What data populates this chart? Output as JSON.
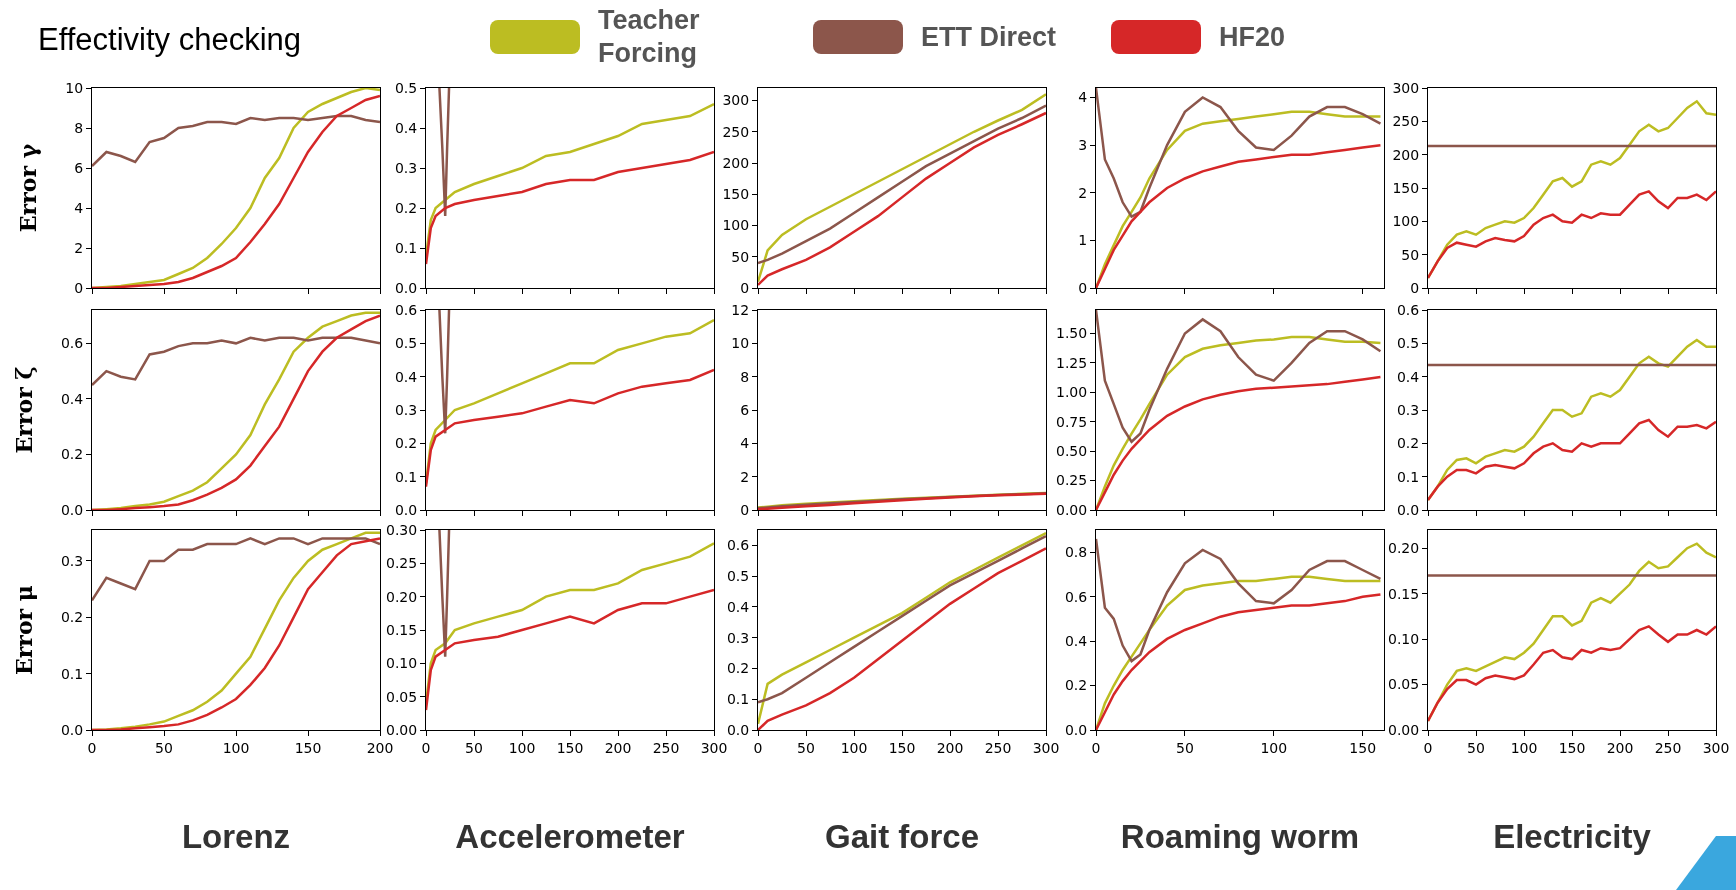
{
  "chart_data": [
    {
      "type": "line",
      "title": "Effectivity checking",
      "legend": "top",
      "ylabel": "Error γ",
      "tick_labels": "y",
      "xlim": [
        0,
        200
      ],
      "xticks": [
        0,
        50,
        100,
        150,
        200
      ],
      "ylim": [
        0,
        10
      ],
      "yticks": [
        0,
        2,
        4,
        6,
        8,
        10
      ],
      "x": [
        0,
        10,
        20,
        30,
        40,
        50,
        60,
        70,
        80,
        90,
        100,
        110,
        120,
        130,
        140,
        150,
        160,
        170,
        180,
        190,
        200
      ],
      "series": [
        {
          "name": "Teacher Forcing",
          "color": "#bcbd22",
          "values": [
            0,
            0.05,
            0.1,
            0.2,
            0.3,
            0.4,
            0.7,
            1.0,
            1.5,
            2.2,
            3.0,
            4.0,
            5.5,
            6.5,
            8.0,
            8.8,
            9.2,
            9.5,
            9.8,
            10,
            9.9
          ]
        },
        {
          "name": "ETT Direct",
          "color": "#8c564b",
          "values": [
            6.1,
            6.8,
            6.6,
            6.3,
            7.3,
            7.5,
            8.0,
            8.1,
            8.3,
            8.3,
            8.2,
            8.5,
            8.4,
            8.5,
            8.5,
            8.4,
            8.5,
            8.6,
            8.6,
            8.4,
            8.3
          ]
        },
        {
          "name": "HF20",
          "color": "#d62728",
          "values": [
            0,
            0,
            0.05,
            0.1,
            0.15,
            0.2,
            0.3,
            0.5,
            0.8,
            1.1,
            1.5,
            2.3,
            3.2,
            4.2,
            5.5,
            6.8,
            7.8,
            8.6,
            9.0,
            9.4,
            9.6
          ]
        }
      ]
    },
    {
      "type": "line",
      "tick_labels": "y",
      "xlim": [
        0,
        300
      ],
      "xticks": [
        0,
        50,
        100,
        150,
        200,
        250,
        300
      ],
      "ylim": [
        0,
        0.5
      ],
      "yticks": [
        {
          "value": 0,
          "label": "0.0"
        },
        0.1,
        0.2,
        0.3,
        0.4,
        0.5
      ],
      "x": [
        0,
        5,
        10,
        20,
        30,
        50,
        75,
        100,
        125,
        150,
        175,
        200,
        225,
        250,
        275,
        300
      ],
      "series": [
        {
          "name": "Teacher Forcing",
          "color": "#bcbd22",
          "values": [
            0.08,
            0.17,
            0.2,
            0.22,
            0.24,
            0.26,
            0.28,
            0.3,
            0.33,
            0.34,
            0.36,
            0.38,
            0.41,
            0.42,
            0.43,
            0.46
          ]
        },
        {
          "name": "ETT Direct",
          "color": "#8c564b",
          "x": [
            14,
            17,
            20,
            22,
            24
          ],
          "values": [
            0.5,
            0.35,
            0.18,
            0.35,
            0.5
          ]
        },
        {
          "name": "HF20",
          "color": "#d62728",
          "values": [
            0.06,
            0.15,
            0.18,
            0.2,
            0.21,
            0.22,
            0.23,
            0.24,
            0.26,
            0.27,
            0.27,
            0.29,
            0.3,
            0.31,
            0.32,
            0.34
          ]
        }
      ]
    },
    {
      "type": "line",
      "tick_labels": "y",
      "xlim": [
        0,
        300
      ],
      "xticks": [
        0,
        50,
        100,
        150,
        200,
        250,
        300
      ],
      "ylim": [
        0,
        320
      ],
      "yticks": [
        0,
        50,
        100,
        150,
        200,
        250,
        300
      ],
      "x": [
        0,
        10,
        25,
        50,
        75,
        100,
        125,
        150,
        175,
        200,
        225,
        250,
        275,
        300
      ],
      "series": [
        {
          "name": "Teacher Forcing",
          "color": "#bcbd22",
          "values": [
            10,
            60,
            85,
            110,
            130,
            150,
            170,
            190,
            210,
            230,
            250,
            268,
            285,
            310
          ]
        },
        {
          "name": "ETT Direct",
          "color": "#8c564b",
          "values": [
            40,
            45,
            55,
            75,
            95,
            120,
            145,
            170,
            195,
            215,
            235,
            255,
            272,
            292
          ]
        },
        {
          "name": "HF20",
          "color": "#d62728",
          "values": [
            5,
            20,
            30,
            45,
            65,
            90,
            115,
            145,
            175,
            200,
            225,
            245,
            262,
            280
          ]
        }
      ]
    },
    {
      "type": "line",
      "tick_labels": "y",
      "xlim": [
        0,
        162
      ],
      "xticks": [
        0,
        50,
        100,
        150
      ],
      "ylim": [
        0,
        4.2
      ],
      "yticks": [
        0,
        1,
        2,
        3,
        4
      ],
      "x": [
        0,
        5,
        10,
        15,
        20,
        25,
        30,
        40,
        50,
        60,
        70,
        80,
        90,
        100,
        110,
        120,
        130,
        140,
        150,
        160
      ],
      "series": [
        {
          "name": "Teacher Forcing",
          "color": "#bcbd22",
          "values": [
            0,
            0.5,
            0.9,
            1.3,
            1.6,
            1.9,
            2.3,
            2.9,
            3.3,
            3.45,
            3.5,
            3.55,
            3.6,
            3.65,
            3.7,
            3.7,
            3.65,
            3.6,
            3.6,
            3.6
          ]
        },
        {
          "name": "ETT Direct",
          "color": "#8c564b",
          "values": [
            4.2,
            2.7,
            2.3,
            1.8,
            1.5,
            1.6,
            2.1,
            3.0,
            3.7,
            4.0,
            3.8,
            3.3,
            2.95,
            2.9,
            3.2,
            3.6,
            3.8,
            3.8,
            3.65,
            3.45
          ]
        },
        {
          "name": "HF20",
          "color": "#d62728",
          "values": [
            0,
            0.4,
            0.8,
            1.1,
            1.4,
            1.6,
            1.8,
            2.1,
            2.3,
            2.45,
            2.55,
            2.65,
            2.7,
            2.75,
            2.8,
            2.8,
            2.85,
            2.9,
            2.95,
            3.0
          ]
        }
      ]
    },
    {
      "type": "line",
      "tick_labels": "y",
      "xlim": [
        0,
        300
      ],
      "xticks": [
        0,
        50,
        100,
        150,
        200,
        250,
        300
      ],
      "ylim": [
        0,
        300
      ],
      "yticks": [
        0,
        50,
        100,
        150,
        200,
        250,
        300
      ],
      "x": [
        0,
        10,
        20,
        30,
        40,
        50,
        60,
        70,
        80,
        90,
        100,
        110,
        120,
        130,
        140,
        150,
        160,
        170,
        180,
        190,
        200,
        210,
        220,
        230,
        240,
        250,
        260,
        270,
        280,
        290,
        300
      ],
      "series": [
        {
          "name": "Teacher Forcing",
          "color": "#bcbd22",
          "values": [
            15,
            40,
            65,
            80,
            85,
            80,
            90,
            95,
            100,
            98,
            105,
            120,
            140,
            160,
            165,
            152,
            160,
            185,
            190,
            185,
            195,
            215,
            235,
            245,
            235,
            240,
            255,
            270,
            280,
            262,
            260
          ]
        },
        {
          "name": "ETT Direct",
          "color": "#8c564b",
          "x": [
            0,
            300
          ],
          "values": [
            213,
            213
          ]
        },
        {
          "name": "HF20",
          "color": "#d62728",
          "values": [
            15,
            40,
            60,
            68,
            65,
            62,
            70,
            75,
            72,
            70,
            78,
            95,
            105,
            110,
            100,
            98,
            110,
            105,
            112,
            110,
            110,
            125,
            140,
            145,
            130,
            120,
            135,
            135,
            140,
            132,
            145
          ]
        }
      ]
    },
    {
      "type": "line",
      "ylabel": "Error ζ",
      "tick_labels": "y",
      "xlim": [
        0,
        200
      ],
      "xticks": [
        0,
        50,
        100,
        150,
        200
      ],
      "ylim": [
        0,
        0.72
      ],
      "yticks": [
        {
          "value": 0,
          "label": "0.0"
        },
        0.2,
        0.4,
        0.6
      ],
      "x": [
        0,
        10,
        20,
        30,
        40,
        50,
        60,
        70,
        80,
        90,
        100,
        110,
        120,
        130,
        140,
        150,
        160,
        170,
        180,
        190,
        200
      ],
      "series": [
        {
          "name": "Teacher Forcing",
          "color": "#bcbd22",
          "values": [
            0,
            0.003,
            0.007,
            0.014,
            0.02,
            0.03,
            0.05,
            0.07,
            0.1,
            0.15,
            0.2,
            0.27,
            0.38,
            0.47,
            0.57,
            0.62,
            0.66,
            0.68,
            0.7,
            0.71,
            0.71
          ]
        },
        {
          "name": "ETT Direct",
          "color": "#8c564b",
          "values": [
            0.45,
            0.5,
            0.48,
            0.47,
            0.56,
            0.57,
            0.59,
            0.6,
            0.6,
            0.61,
            0.6,
            0.62,
            0.61,
            0.62,
            0.62,
            0.61,
            0.62,
            0.62,
            0.62,
            0.61,
            0.6
          ]
        },
        {
          "name": "HF20",
          "color": "#d62728",
          "values": [
            0,
            0,
            0.003,
            0.007,
            0.01,
            0.014,
            0.02,
            0.035,
            0.055,
            0.08,
            0.11,
            0.16,
            0.23,
            0.3,
            0.4,
            0.5,
            0.57,
            0.62,
            0.65,
            0.68,
            0.7
          ]
        }
      ]
    },
    {
      "type": "line",
      "tick_labels": "y",
      "xlim": [
        0,
        300
      ],
      "xticks": [
        0,
        50,
        100,
        150,
        200,
        250,
        300
      ],
      "ylim": [
        0,
        0.6
      ],
      "yticks": [
        {
          "value": 0,
          "label": "0.0"
        },
        0.1,
        0.2,
        0.3,
        0.4,
        0.5,
        0.6
      ],
      "x": [
        0,
        5,
        10,
        20,
        30,
        50,
        75,
        100,
        125,
        150,
        175,
        200,
        225,
        250,
        275,
        300
      ],
      "series": [
        {
          "name": "Teacher Forcing",
          "color": "#bcbd22",
          "values": [
            0.08,
            0.2,
            0.24,
            0.27,
            0.3,
            0.32,
            0.35,
            0.38,
            0.41,
            0.44,
            0.44,
            0.48,
            0.5,
            0.52,
            0.53,
            0.57
          ]
        },
        {
          "name": "ETT Direct",
          "color": "#8c564b",
          "x": [
            14,
            17,
            20,
            22,
            24
          ],
          "values": [
            0.6,
            0.4,
            0.23,
            0.4,
            0.6
          ]
        },
        {
          "name": "HF20",
          "color": "#d62728",
          "values": [
            0.07,
            0.18,
            0.22,
            0.24,
            0.26,
            0.27,
            0.28,
            0.29,
            0.31,
            0.33,
            0.32,
            0.35,
            0.37,
            0.38,
            0.39,
            0.42
          ]
        }
      ]
    },
    {
      "type": "line",
      "tick_labels": "y",
      "xlim": [
        0,
        300
      ],
      "xticks": [
        0,
        50,
        100,
        150,
        200,
        250,
        300
      ],
      "ylim": [
        0,
        12
      ],
      "yticks": [
        0,
        2,
        4,
        6,
        8,
        10,
        12
      ],
      "x": [
        0,
        10,
        25,
        50,
        75,
        100,
        125,
        150,
        175,
        200,
        225,
        250,
        275,
        300
      ],
      "series": [
        {
          "name": "Teacher Forcing",
          "color": "#bcbd22",
          "values": [
            0.15,
            0.2,
            0.28,
            0.38,
            0.45,
            0.52,
            0.6,
            0.67,
            0.74,
            0.8,
            0.86,
            0.92,
            0.97,
            1.02
          ]
        },
        {
          "name": "ETT Direct",
          "color": "#8c564b",
          "values": [
            0.1,
            0.15,
            0.22,
            0.32,
            0.4,
            0.48,
            0.56,
            0.64,
            0.71,
            0.78,
            0.84,
            0.9,
            0.95,
            1.0
          ]
        },
        {
          "name": "HF20",
          "color": "#d62728",
          "values": [
            0.05,
            0.08,
            0.14,
            0.22,
            0.3,
            0.4,
            0.5,
            0.59,
            0.68,
            0.75,
            0.82,
            0.88,
            0.93,
            0.98
          ]
        }
      ]
    },
    {
      "type": "line",
      "tick_labels": "y",
      "xlim": [
        0,
        162
      ],
      "xticks": [
        0,
        50,
        100,
        150
      ],
      "ylim": [
        0,
        1.7
      ],
      "yticks": [
        {
          "value": 0,
          "label": "0.00"
        },
        0.25,
        {
          "value": 0.5,
          "label": "0.50"
        },
        0.75,
        {
          "value": 1,
          "label": "1.00"
        },
        1.25,
        {
          "value": 1.5,
          "label": "1.50"
        }
      ],
      "x": [
        0,
        5,
        10,
        15,
        20,
        25,
        30,
        40,
        50,
        60,
        70,
        80,
        90,
        100,
        110,
        120,
        130,
        140,
        150,
        160
      ],
      "series": [
        {
          "name": "Teacher Forcing",
          "color": "#bcbd22",
          "values": [
            0,
            0.2,
            0.38,
            0.52,
            0.65,
            0.77,
            0.9,
            1.15,
            1.3,
            1.37,
            1.4,
            1.42,
            1.44,
            1.45,
            1.47,
            1.47,
            1.45,
            1.43,
            1.43,
            1.42
          ]
        },
        {
          "name": "ETT Direct",
          "color": "#8c564b",
          "values": [
            1.7,
            1.1,
            0.9,
            0.7,
            0.58,
            0.65,
            0.85,
            1.2,
            1.5,
            1.62,
            1.52,
            1.3,
            1.15,
            1.1,
            1.25,
            1.42,
            1.52,
            1.52,
            1.45,
            1.35
          ]
        },
        {
          "name": "HF20",
          "color": "#d62728",
          "values": [
            0,
            0.15,
            0.3,
            0.42,
            0.52,
            0.6,
            0.68,
            0.8,
            0.88,
            0.94,
            0.98,
            1.01,
            1.03,
            1.04,
            1.05,
            1.06,
            1.07,
            1.09,
            1.11,
            1.13
          ]
        }
      ]
    },
    {
      "type": "line",
      "tick_labels": "y",
      "xlim": [
        0,
        300
      ],
      "xticks": [
        0,
        50,
        100,
        150,
        200,
        250,
        300
      ],
      "ylim": [
        0,
        0.6
      ],
      "yticks": [
        {
          "value": 0,
          "label": "0.0"
        },
        0.1,
        0.2,
        0.3,
        0.4,
        0.5,
        0.6
      ],
      "x": [
        0,
        10,
        20,
        30,
        40,
        50,
        60,
        70,
        80,
        90,
        100,
        110,
        120,
        130,
        140,
        150,
        160,
        170,
        180,
        190,
        200,
        210,
        220,
        230,
        240,
        250,
        260,
        270,
        280,
        290,
        300
      ],
      "series": [
        {
          "name": "Teacher Forcing",
          "color": "#bcbd22",
          "values": [
            0.03,
            0.07,
            0.12,
            0.15,
            0.155,
            0.14,
            0.16,
            0.17,
            0.18,
            0.175,
            0.19,
            0.22,
            0.26,
            0.3,
            0.3,
            0.28,
            0.29,
            0.34,
            0.35,
            0.34,
            0.36,
            0.4,
            0.44,
            0.46,
            0.44,
            0.43,
            0.46,
            0.49,
            0.51,
            0.49,
            0.49
          ]
        },
        {
          "name": "ETT Direct",
          "color": "#8c564b",
          "x": [
            0,
            300
          ],
          "values": [
            0.435,
            0.435
          ]
        },
        {
          "name": "HF20",
          "color": "#d62728",
          "values": [
            0.03,
            0.07,
            0.1,
            0.12,
            0.12,
            0.11,
            0.13,
            0.135,
            0.13,
            0.125,
            0.14,
            0.17,
            0.19,
            0.2,
            0.18,
            0.175,
            0.2,
            0.19,
            0.2,
            0.2,
            0.2,
            0.23,
            0.26,
            0.27,
            0.24,
            0.22,
            0.25,
            0.25,
            0.255,
            0.245,
            0.265
          ]
        }
      ]
    },
    {
      "type": "line",
      "ylabel": "Error μ",
      "xlabel": "Lorenz",
      "xlim": [
        0,
        200
      ],
      "xticks": [
        0,
        50,
        100,
        150,
        200
      ],
      "ylim": [
        0,
        0.355
      ],
      "yticks": [
        {
          "value": 0,
          "label": "0.0"
        },
        0.1,
        0.2,
        0.3
      ],
      "x": [
        0,
        10,
        20,
        30,
        40,
        50,
        60,
        70,
        80,
        90,
        100,
        110,
        120,
        130,
        140,
        150,
        160,
        170,
        180,
        190,
        200
      ],
      "series": [
        {
          "name": "Teacher Forcing",
          "color": "#bcbd22",
          "values": [
            0,
            0.001,
            0.003,
            0.006,
            0.01,
            0.015,
            0.025,
            0.035,
            0.05,
            0.07,
            0.1,
            0.13,
            0.18,
            0.23,
            0.27,
            0.3,
            0.32,
            0.33,
            0.34,
            0.35,
            0.35
          ]
        },
        {
          "name": "ETT Direct",
          "color": "#8c564b",
          "values": [
            0.23,
            0.27,
            0.26,
            0.25,
            0.3,
            0.3,
            0.32,
            0.32,
            0.33,
            0.33,
            0.33,
            0.34,
            0.33,
            0.34,
            0.34,
            0.33,
            0.34,
            0.34,
            0.34,
            0.34,
            0.33
          ]
        },
        {
          "name": "HF20",
          "color": "#d62728",
          "values": [
            0,
            0,
            0.001,
            0.003,
            0.005,
            0.007,
            0.01,
            0.017,
            0.027,
            0.04,
            0.055,
            0.08,
            0.11,
            0.15,
            0.2,
            0.25,
            0.28,
            0.31,
            0.33,
            0.335,
            0.34
          ]
        }
      ]
    },
    {
      "type": "line",
      "xlabel": "Accelerometer",
      "xlim": [
        0,
        300
      ],
      "xticks": [
        0,
        50,
        100,
        150,
        200,
        250,
        300
      ],
      "ylim": [
        0,
        0.3
      ],
      "yticks": [
        {
          "value": 0,
          "label": "0.00"
        },
        0.05,
        {
          "value": 0.1,
          "label": "0.10"
        },
        0.15,
        {
          "value": 0.2,
          "label": "0.20"
        },
        0.25,
        {
          "value": 0.3,
          "label": "0.30"
        }
      ],
      "x": [
        0,
        5,
        10,
        20,
        30,
        50,
        75,
        100,
        125,
        150,
        175,
        200,
        225,
        250,
        275,
        300
      ],
      "series": [
        {
          "name": "Teacher Forcing",
          "color": "#bcbd22",
          "values": [
            0.04,
            0.1,
            0.12,
            0.13,
            0.15,
            0.16,
            0.17,
            0.18,
            0.2,
            0.21,
            0.21,
            0.22,
            0.24,
            0.25,
            0.26,
            0.28
          ]
        },
        {
          "name": "ETT Direct",
          "color": "#8c564b",
          "x": [
            14,
            17,
            20,
            22,
            24
          ],
          "values": [
            0.3,
            0.2,
            0.11,
            0.2,
            0.3
          ]
        },
        {
          "name": "HF20",
          "color": "#d62728",
          "values": [
            0.03,
            0.09,
            0.11,
            0.12,
            0.13,
            0.135,
            0.14,
            0.15,
            0.16,
            0.17,
            0.16,
            0.18,
            0.19,
            0.19,
            0.2,
            0.21
          ]
        }
      ]
    },
    {
      "type": "line",
      "xlabel": "Gait force",
      "xlim": [
        0,
        300
      ],
      "xticks": [
        0,
        50,
        100,
        150,
        200,
        250,
        300
      ],
      "ylim": [
        0,
        0.65
      ],
      "yticks": [
        {
          "value": 0,
          "label": "0.0"
        },
        0.1,
        0.2,
        0.3,
        0.4,
        0.5,
        0.6
      ],
      "x": [
        0,
        10,
        25,
        50,
        75,
        100,
        125,
        150,
        175,
        200,
        225,
        250,
        275,
        300
      ],
      "series": [
        {
          "name": "Teacher Forcing",
          "color": "#bcbd22",
          "values": [
            0.02,
            0.15,
            0.18,
            0.22,
            0.26,
            0.3,
            0.34,
            0.38,
            0.43,
            0.48,
            0.52,
            0.56,
            0.6,
            0.64
          ]
        },
        {
          "name": "ETT Direct",
          "color": "#8c564b",
          "values": [
            0.09,
            0.1,
            0.12,
            0.17,
            0.22,
            0.27,
            0.32,
            0.37,
            0.42,
            0.47,
            0.51,
            0.55,
            0.59,
            0.63
          ]
        },
        {
          "name": "HF20",
          "color": "#d62728",
          "values": [
            0,
            0.03,
            0.05,
            0.08,
            0.12,
            0.17,
            0.23,
            0.29,
            0.35,
            0.41,
            0.46,
            0.51,
            0.55,
            0.59
          ]
        }
      ]
    },
    {
      "type": "line",
      "xlabel": "Roaming worm",
      "xlim": [
        0,
        162
      ],
      "xticks": [
        0,
        50,
        100,
        150
      ],
      "ylim": [
        0,
        0.9
      ],
      "yticks": [
        {
          "value": 0,
          "label": "0.0"
        },
        0.2,
        0.4,
        0.6,
        0.8
      ],
      "x": [
        0,
        5,
        10,
        15,
        20,
        25,
        30,
        40,
        50,
        60,
        70,
        80,
        90,
        100,
        110,
        120,
        130,
        140,
        150,
        160
      ],
      "series": [
        {
          "name": "Teacher Forcing",
          "color": "#bcbd22",
          "values": [
            0,
            0.12,
            0.2,
            0.27,
            0.33,
            0.39,
            0.45,
            0.56,
            0.63,
            0.65,
            0.66,
            0.67,
            0.67,
            0.68,
            0.69,
            0.69,
            0.68,
            0.67,
            0.67,
            0.67
          ]
        },
        {
          "name": "ETT Direct",
          "color": "#8c564b",
          "values": [
            0.86,
            0.55,
            0.5,
            0.38,
            0.31,
            0.34,
            0.45,
            0.62,
            0.75,
            0.81,
            0.77,
            0.66,
            0.58,
            0.57,
            0.63,
            0.72,
            0.76,
            0.76,
            0.72,
            0.68
          ]
        },
        {
          "name": "HF20",
          "color": "#d62728",
          "values": [
            0,
            0.08,
            0.16,
            0.22,
            0.27,
            0.31,
            0.35,
            0.41,
            0.45,
            0.48,
            0.51,
            0.53,
            0.54,
            0.55,
            0.56,
            0.56,
            0.57,
            0.58,
            0.6,
            0.61
          ]
        }
      ]
    },
    {
      "type": "line",
      "xlabel": "Electricity",
      "xlim": [
        0,
        300
      ],
      "xticks": [
        0,
        50,
        100,
        150,
        200,
        250,
        300
      ],
      "ylim": [
        0,
        0.22
      ],
      "yticks": [
        {
          "value": 0,
          "label": "0.00"
        },
        0.05,
        {
          "value": 0.1,
          "label": "0.10"
        },
        0.15,
        {
          "value": 0.2,
          "label": "0.20"
        }
      ],
      "x": [
        0,
        10,
        20,
        30,
        40,
        50,
        60,
        70,
        80,
        90,
        100,
        110,
        120,
        130,
        140,
        150,
        160,
        170,
        180,
        190,
        200,
        210,
        220,
        230,
        240,
        250,
        260,
        270,
        280,
        290,
        300
      ],
      "series": [
        {
          "name": "Teacher Forcing",
          "color": "#bcbd22",
          "values": [
            0.01,
            0.03,
            0.05,
            0.065,
            0.068,
            0.065,
            0.07,
            0.075,
            0.08,
            0.078,
            0.085,
            0.095,
            0.11,
            0.125,
            0.125,
            0.115,
            0.12,
            0.14,
            0.145,
            0.14,
            0.15,
            0.16,
            0.175,
            0.185,
            0.178,
            0.18,
            0.19,
            0.2,
            0.205,
            0.195,
            0.19
          ]
        },
        {
          "name": "ETT Direct",
          "color": "#8c564b",
          "x": [
            0,
            300
          ],
          "values": [
            0.17,
            0.17
          ]
        },
        {
          "name": "HF20",
          "color": "#d62728",
          "values": [
            0.01,
            0.03,
            0.045,
            0.055,
            0.055,
            0.05,
            0.057,
            0.06,
            0.058,
            0.056,
            0.06,
            0.072,
            0.085,
            0.088,
            0.08,
            0.078,
            0.088,
            0.085,
            0.09,
            0.088,
            0.09,
            0.1,
            0.11,
            0.114,
            0.105,
            0.097,
            0.105,
            0.105,
            0.11,
            0.105,
            0.114
          ]
        }
      ]
    }
  ]
}
